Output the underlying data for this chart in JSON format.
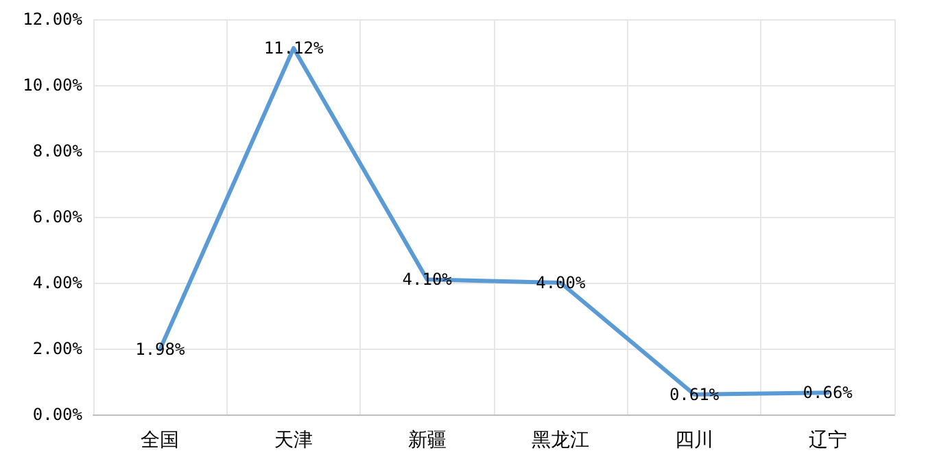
{
  "chart_data": {
    "type": "line",
    "categories": [
      "全国",
      "天津",
      "新疆",
      "黑龙江",
      "四川",
      "辽宁"
    ],
    "series": [
      {
        "color": "#5b9bd5",
        "values": [
          1.98,
          11.12,
          4.1,
          4.0,
          0.61,
          0.66
        ],
        "value_labels": [
          "1.98%",
          "11.12%",
          "4.10%",
          "4.00%",
          "0.61%",
          "0.66%"
        ]
      }
    ],
    "ylim": [
      0,
      12
    ],
    "yticks": [
      {
        "value": 0,
        "label": "0.00%"
      },
      {
        "value": 2,
        "label": "2.00%"
      },
      {
        "value": 4,
        "label": "4.00%"
      },
      {
        "value": 6,
        "label": "6.00%"
      },
      {
        "value": 8,
        "label": "8.00%"
      },
      {
        "value": 10,
        "label": "10.00%"
      },
      {
        "value": 12,
        "label": "12.00%"
      }
    ],
    "grid": true,
    "marker": "none",
    "line_style": "solid"
  }
}
